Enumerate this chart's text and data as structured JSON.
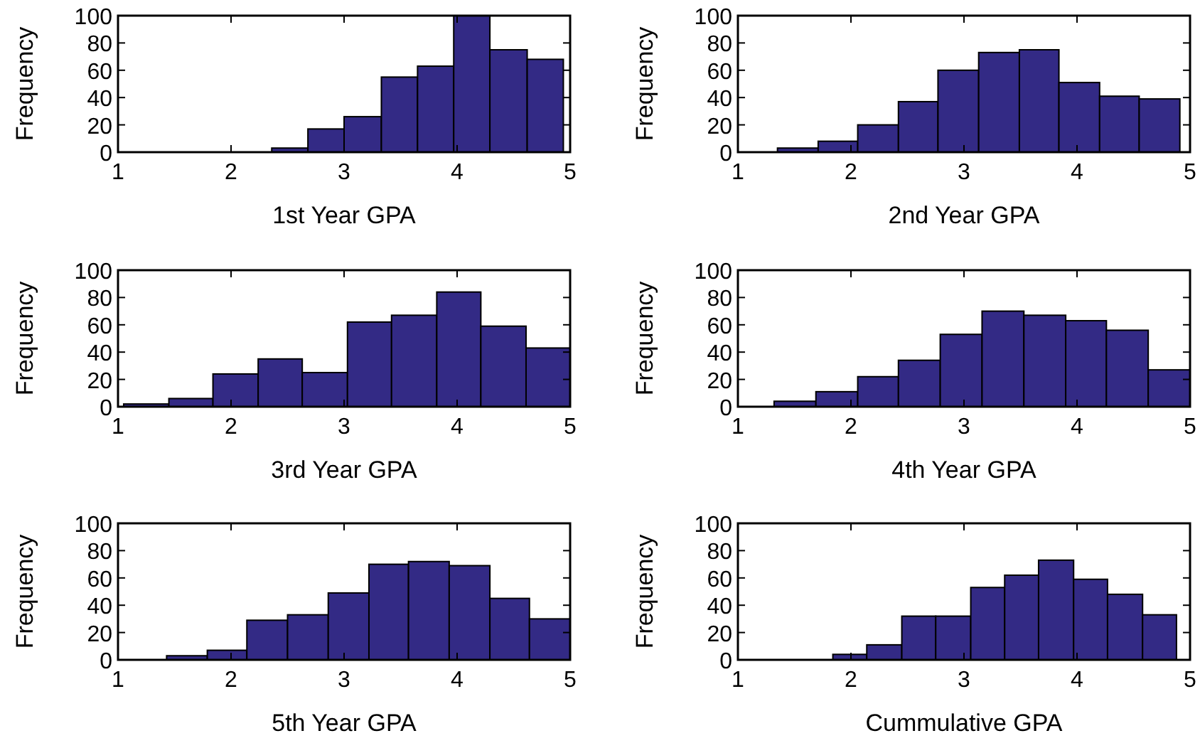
{
  "chart_data": [
    {
      "type": "histogram",
      "xlabel": "1st Year GPA",
      "ylabel": "Frequency",
      "color": "#332a85",
      "xlim": [
        1,
        5
      ],
      "xticks": [
        1,
        2,
        3,
        4,
        5
      ],
      "ylim": [
        0,
        100
      ],
      "yticks": [
        0,
        20,
        40,
        60,
        80,
        100
      ],
      "bins": [
        2.36,
        2.68,
        3.0,
        3.33,
        3.65,
        3.97,
        4.29,
        4.62,
        4.94
      ],
      "values": [
        3,
        17,
        26,
        55,
        63,
        100,
        75,
        68
      ]
    },
    {
      "type": "histogram",
      "xlabel": "2nd Year GPA",
      "ylabel": "Frequency",
      "color": "#332a85",
      "xlim": [
        1,
        5
      ],
      "xticks": [
        1,
        2,
        3,
        4,
        5
      ],
      "ylim": [
        0,
        100
      ],
      "yticks": [
        0,
        20,
        40,
        60,
        80,
        100
      ],
      "bins": [
        1.35,
        1.71,
        2.06,
        2.42,
        2.77,
        3.13,
        3.49,
        3.84,
        4.2,
        4.55,
        4.91
      ],
      "values": [
        3,
        8,
        20,
        37,
        60,
        73,
        75,
        51,
        41,
        39
      ]
    },
    {
      "type": "histogram",
      "xlabel": "3rd Year GPA",
      "ylabel": "Frequency",
      "color": "#332a85",
      "xlim": [
        1,
        5
      ],
      "xticks": [
        1,
        2,
        3,
        4,
        5
      ],
      "ylim": [
        0,
        100
      ],
      "yticks": [
        0,
        20,
        40,
        60,
        80,
        100
      ],
      "bins": [
        1.05,
        1.45,
        1.84,
        2.24,
        2.63,
        3.03,
        3.42,
        3.82,
        4.21,
        4.61,
        5.0
      ],
      "values": [
        2,
        6,
        24,
        35,
        25,
        62,
        67,
        84,
        59,
        43
      ]
    },
    {
      "type": "histogram",
      "xlabel": "4th Year GPA",
      "ylabel": "Frequency",
      "color": "#332a85",
      "xlim": [
        1,
        5
      ],
      "xticks": [
        1,
        2,
        3,
        4,
        5
      ],
      "ylim": [
        0,
        100
      ],
      "yticks": [
        0,
        20,
        40,
        60,
        80,
        100
      ],
      "bins": [
        1.32,
        1.69,
        2.06,
        2.42,
        2.79,
        3.16,
        3.53,
        3.9,
        4.26,
        4.63,
        5.0
      ],
      "values": [
        4,
        11,
        22,
        34,
        53,
        70,
        67,
        63,
        56,
        27
      ]
    },
    {
      "type": "histogram",
      "xlabel": "5th Year GPA",
      "ylabel": "Frequency",
      "color": "#332a85",
      "xlim": [
        1,
        5
      ],
      "xticks": [
        1,
        2,
        3,
        4,
        5
      ],
      "ylim": [
        0,
        100
      ],
      "yticks": [
        0,
        20,
        40,
        60,
        80,
        100
      ],
      "bins": [
        1.43,
        1.79,
        2.14,
        2.5,
        2.86,
        3.22,
        3.57,
        3.93,
        4.29,
        4.64,
        5.0
      ],
      "values": [
        3,
        7,
        29,
        33,
        49,
        70,
        72,
        69,
        45,
        30
      ]
    },
    {
      "type": "histogram",
      "xlabel": "Cummulative GPA",
      "ylabel": "Frequency",
      "color": "#332a85",
      "xlim": [
        1,
        5
      ],
      "xticks": [
        1,
        2,
        3,
        4,
        5
      ],
      "ylim": [
        0,
        100
      ],
      "yticks": [
        0,
        20,
        40,
        60,
        80,
        100
      ],
      "bins": [
        1.84,
        2.14,
        2.45,
        2.75,
        3.06,
        3.36,
        3.66,
        3.97,
        4.27,
        4.58,
        4.88
      ],
      "values": [
        4,
        11,
        32,
        32,
        53,
        62,
        73,
        59,
        48,
        33
      ]
    }
  ]
}
